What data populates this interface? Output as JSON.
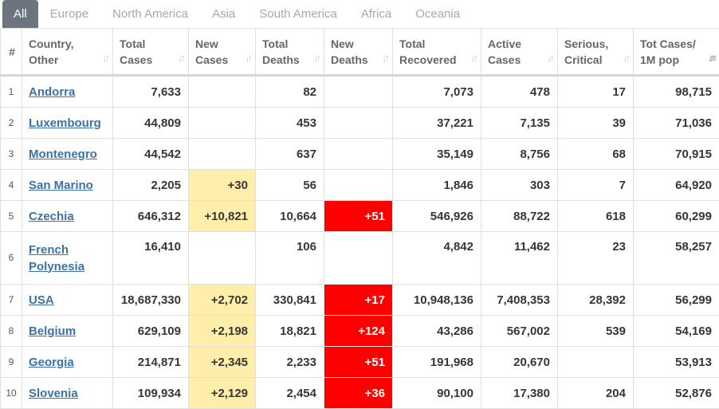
{
  "tabs": [
    "All",
    "Europe",
    "North America",
    "Asia",
    "South America",
    "Africa",
    "Oceania"
  ],
  "headers": {
    "index": "#",
    "country": [
      "Country,",
      "Other"
    ],
    "total_cases": [
      "Total",
      "Cases"
    ],
    "new_cases": [
      "New",
      "Cases"
    ],
    "total_deaths": [
      "Total",
      "Deaths"
    ],
    "new_deaths": [
      "New",
      "Deaths"
    ],
    "total_recovered": [
      "Total",
      "Recovered"
    ],
    "active_cases": [
      "Active",
      "Cases"
    ],
    "serious": [
      "Serious,",
      "Critical"
    ],
    "per_million": [
      "Tot Cases/",
      "1M pop"
    ]
  },
  "colors": {
    "active_tab": "#6c757d",
    "new_cases_highlight": "#ffeeaa",
    "new_deaths_highlight": "#ff0000",
    "link": "#3a72a8"
  },
  "icons": {
    "sort": "sort-arrows-icon",
    "sort_active": "sort-desc-icon"
  },
  "rows": [
    {
      "idx": "1",
      "country": "Andorra",
      "total_cases": "7,633",
      "new_cases": "",
      "total_deaths": "82",
      "new_deaths": "",
      "total_recovered": "7,073",
      "active_cases": "478",
      "serious": "17",
      "per_million": "98,715"
    },
    {
      "idx": "2",
      "country": "Luxembourg",
      "total_cases": "44,809",
      "new_cases": "",
      "total_deaths": "453",
      "new_deaths": "",
      "total_recovered": "37,221",
      "active_cases": "7,135",
      "serious": "39",
      "per_million": "71,036"
    },
    {
      "idx": "3",
      "country": "Montenegro",
      "total_cases": "44,542",
      "new_cases": "",
      "total_deaths": "637",
      "new_deaths": "",
      "total_recovered": "35,149",
      "active_cases": "8,756",
      "serious": "68",
      "per_million": "70,915"
    },
    {
      "idx": "4",
      "country": "San Marino",
      "total_cases": "2,205",
      "new_cases": "+30",
      "total_deaths": "56",
      "new_deaths": "",
      "total_recovered": "1,846",
      "active_cases": "303",
      "serious": "7",
      "per_million": "64,920"
    },
    {
      "idx": "5",
      "country": "Czechia",
      "total_cases": "646,312",
      "new_cases": "+10,821",
      "total_deaths": "10,664",
      "new_deaths": "+51",
      "total_recovered": "546,926",
      "active_cases": "88,722",
      "serious": "618",
      "per_million": "60,299"
    },
    {
      "idx": "6",
      "country": "French Polynesia",
      "total_cases": "16,410",
      "new_cases": "",
      "total_deaths": "106",
      "new_deaths": "",
      "total_recovered": "4,842",
      "active_cases": "11,462",
      "serious": "23",
      "per_million": "58,257"
    },
    {
      "idx": "7",
      "country": "USA",
      "total_cases": "18,687,330",
      "new_cases": "+2,702",
      "total_deaths": "330,841",
      "new_deaths": "+17",
      "total_recovered": "10,948,136",
      "active_cases": "7,408,353",
      "serious": "28,392",
      "per_million": "56,299"
    },
    {
      "idx": "8",
      "country": "Belgium",
      "total_cases": "629,109",
      "new_cases": "+2,198",
      "total_deaths": "18,821",
      "new_deaths": "+124",
      "total_recovered": "43,286",
      "active_cases": "567,002",
      "serious": "539",
      "per_million": "54,169"
    },
    {
      "idx": "9",
      "country": "Georgia",
      "total_cases": "214,871",
      "new_cases": "+2,345",
      "total_deaths": "2,233",
      "new_deaths": "+51",
      "total_recovered": "191,968",
      "active_cases": "20,670",
      "serious": "",
      "per_million": "53,913"
    },
    {
      "idx": "10",
      "country": "Slovenia",
      "total_cases": "109,934",
      "new_cases": "+2,129",
      "total_deaths": "2,454",
      "new_deaths": "+36",
      "total_recovered": "90,100",
      "active_cases": "17,380",
      "serious": "204",
      "per_million": "52,876"
    }
  ]
}
